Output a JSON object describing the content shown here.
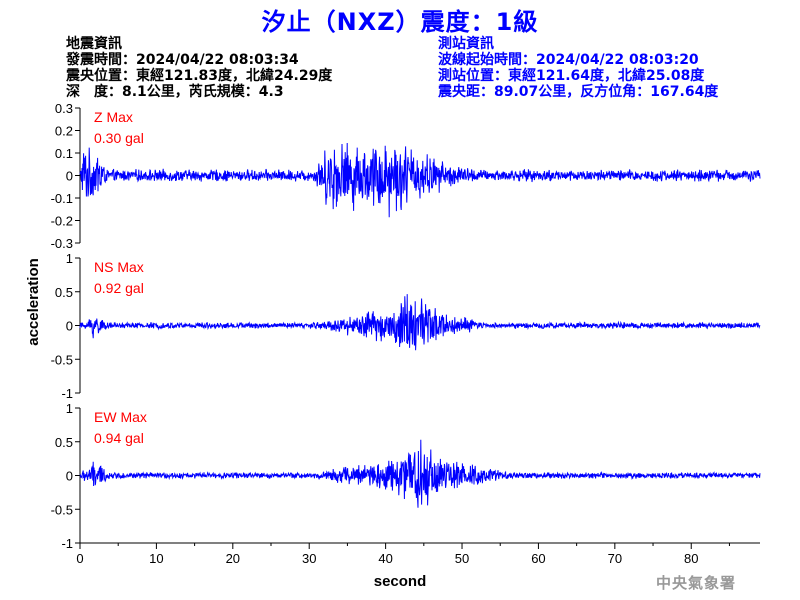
{
  "header": {
    "title": "汐止（NXZ）震度：1級"
  },
  "quake_info": {
    "heading": "地震資訊",
    "origin_time": "發震時間：2024/04/22 08:03:34",
    "epicenter": "震央位置：東經121.83度，北緯24.29度",
    "depth_magnitude": "深　度：8.1公里，芮氏規模：4.3"
  },
  "station_info": {
    "heading": "測站資訊",
    "wave_start": "波線起始時間：2024/04/22 08:03:20",
    "location": "測站位置：東經121.64度，北緯25.08度",
    "distance": "震央距：89.07公里，反方位角：167.64度"
  },
  "agency": "中央氣象署",
  "colors": {
    "trace": "#0000ff",
    "max_label": "#ff0000",
    "title": "#0000ff"
  },
  "chart_data": {
    "type": "line",
    "xlabel": "second",
    "ylabel": "acceleration",
    "xlim": [
      0,
      89
    ],
    "x_ticks": [
      0,
      10,
      20,
      30,
      40,
      50,
      60,
      70,
      80
    ],
    "grid": false,
    "panels": [
      {
        "name": "Z",
        "max_label": "Z Max",
        "max_value": "0.30 gal",
        "ylim": [
          -0.3,
          0.3
        ],
        "y_ticks": [
          -0.3,
          -0.2,
          -0.1,
          0,
          0.1,
          0.2,
          0.3
        ],
        "y_tick_labels": [
          "-0.3",
          "-0.2",
          "-0.1",
          "0",
          "0.1",
          "0.2",
          "0.3"
        ],
        "noise": 0.03,
        "bursts": [
          {
            "t0": 0,
            "peak": 0.5,
            "t1": 3.5,
            "amp": 0.13
          },
          {
            "t0": 2.0,
            "peak": 2.6,
            "t1": 3.2,
            "amp": 0.12
          },
          {
            "t0": 30.5,
            "peak": 33,
            "t1": 52,
            "amp": 0.16
          },
          {
            "t0": 38,
            "peak": 40,
            "t1": 48,
            "amp": 0.08
          }
        ]
      },
      {
        "name": "NS",
        "max_label": "NS Max",
        "max_value": "0.92 gal",
        "ylim": [
          -1,
          1
        ],
        "y_ticks": [
          -1,
          -0.5,
          0,
          0.5,
          1
        ],
        "y_tick_labels": [
          "-1",
          "-0.5",
          "0",
          "0.5",
          "1"
        ],
        "noise": 0.05,
        "bursts": [
          {
            "t0": 0.5,
            "peak": 2,
            "t1": 3.5,
            "amp": 0.2
          },
          {
            "t0": 30.5,
            "peak": 43,
            "t1": 53,
            "amp": 0.3
          },
          {
            "t0": 41,
            "peak": 43,
            "t1": 47,
            "amp": 0.3
          }
        ]
      },
      {
        "name": "EW",
        "max_label": "EW Max",
        "max_value": "0.94 gal",
        "ylim": [
          -1,
          1
        ],
        "y_ticks": [
          -1,
          -0.5,
          0,
          0.5,
          1
        ],
        "y_tick_labels": [
          "-1",
          "-0.5",
          "0",
          "0.5",
          "1"
        ],
        "noise": 0.05,
        "bursts": [
          {
            "t0": 0,
            "peak": 2,
            "t1": 4,
            "amp": 0.2
          },
          {
            "t0": 30.5,
            "peak": 44,
            "t1": 56,
            "amp": 0.32
          },
          {
            "t0": 41,
            "peak": 45,
            "t1": 47,
            "amp": 0.35
          }
        ]
      }
    ]
  }
}
